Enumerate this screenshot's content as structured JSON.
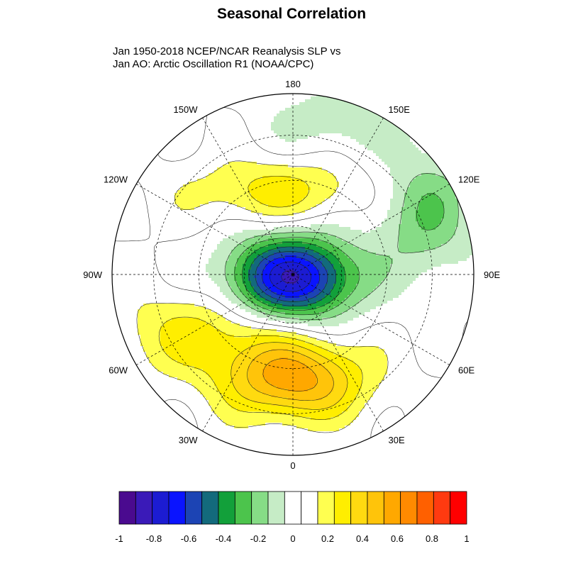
{
  "title": "Seasonal Correlation",
  "subtitle_line1": "Jan 1950-2018 NCEP/NCAR Reanalysis SLP vs",
  "subtitle_line2": "Jan AO: Arctic Oscillation R1 (NOAA/CPC)",
  "chart_data": {
    "type": "heatmap",
    "projection": "polar stereographic, Northern Hemisphere",
    "variable": "correlation",
    "longitude_labels": [
      "180",
      "150E",
      "120E",
      "90E",
      "60E",
      "30E",
      "0",
      "30W",
      "60W",
      "90W",
      "120W",
      "150W"
    ],
    "colorbar": {
      "levels": [
        -1.0,
        -0.9,
        -0.8,
        -0.7,
        -0.6,
        -0.5,
        -0.4,
        -0.3,
        -0.2,
        -0.1,
        0.0,
        0.1,
        0.2,
        0.3,
        0.4,
        0.5,
        0.6,
        0.7,
        0.8,
        0.9,
        1.0
      ],
      "colors": [
        "#4a0a8f",
        "#3a1ab8",
        "#1c1cd2",
        "#0a14ff",
        "#1c44b4",
        "#136a7c",
        "#12a03a",
        "#4cc44c",
        "#86dc86",
        "#c6ecc6",
        "#ffffff",
        "#ffffff",
        "#ffff50",
        "#ffee00",
        "#ffda10",
        "#ffc40a",
        "#ffa800",
        "#ff8a00",
        "#ff6000",
        "#ff3a10",
        "#ff0000"
      ],
      "tick_labels": [
        "-1",
        "-0.8",
        "-0.6",
        "-0.4",
        "-0.2",
        "0",
        "0.2",
        "0.4",
        "0.6",
        "0.8",
        "1"
      ],
      "tick_values": [
        -1.0,
        -0.8,
        -0.6,
        -0.4,
        -0.2,
        0.0,
        0.2,
        0.4,
        0.6,
        0.8,
        1.0
      ]
    },
    "pattern": {
      "arctic_minimum": -0.9,
      "atlantic_maximum": 0.75,
      "pacific_maximum": 0.3,
      "east_asia_minimum": -0.2
    }
  }
}
